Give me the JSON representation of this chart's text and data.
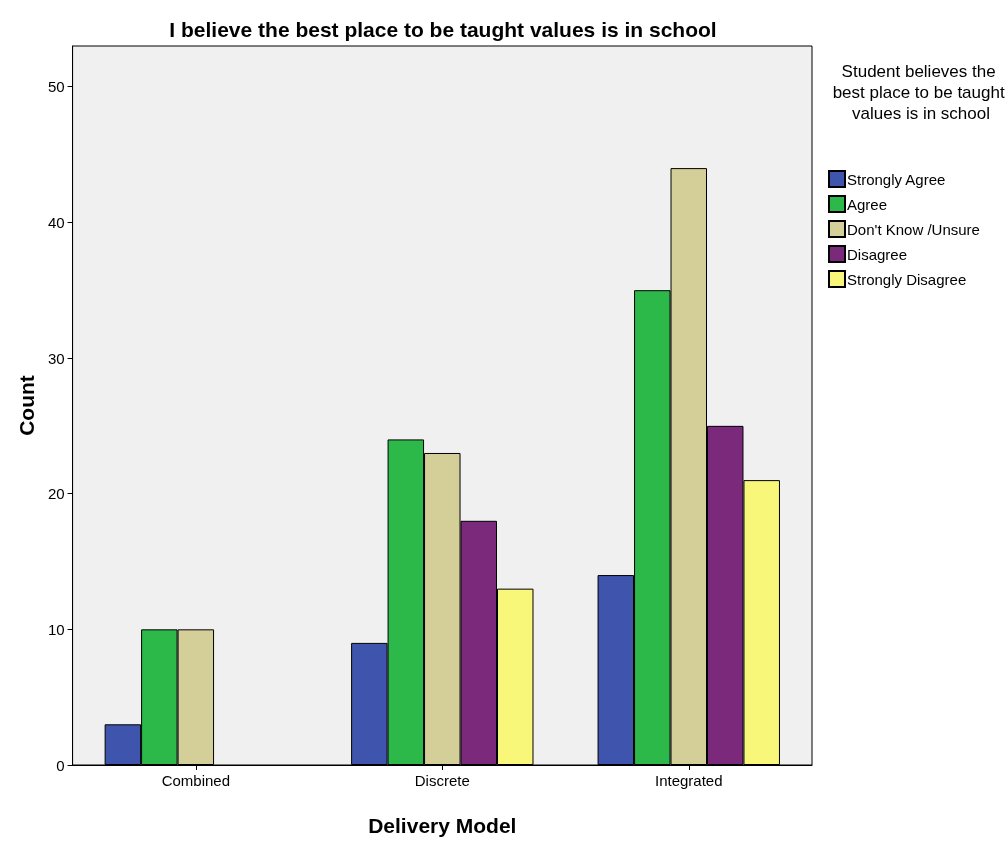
{
  "chart_data": {
    "type": "bar",
    "title": "I believe the best place to be taught values is in school",
    "xlabel": "Delivery Model",
    "ylabel": "Count",
    "legend_title": "Student believes the best place to be taught values is in school",
    "categories": [
      "Combined",
      "Discrete",
      "Integrated"
    ],
    "series": [
      {
        "name": "Strongly Agree",
        "color": "#3f55ad",
        "values": [
          3,
          9,
          14
        ]
      },
      {
        "name": "Agree",
        "color": "#2db84a",
        "values": [
          10,
          24,
          35
        ]
      },
      {
        "name": "Don't Know /Unsure",
        "color": "#d4cf98",
        "values": [
          10,
          23,
          44
        ]
      },
      {
        "name": "Disagree",
        "color": "#7b2a7b",
        "values": [
          null,
          18,
          25
        ]
      },
      {
        "name": "Strongly Disagree",
        "color": "#f9f77a",
        "values": [
          null,
          13,
          21
        ]
      }
    ],
    "ylim": [
      0,
      53
    ],
    "yticks": [
      0,
      10,
      20,
      30,
      40,
      50
    ],
    "grid": false,
    "legend": "right"
  }
}
